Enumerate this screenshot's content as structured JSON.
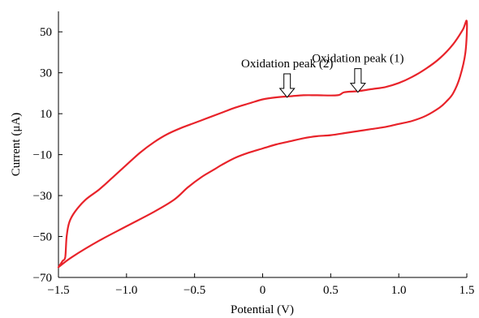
{
  "chart_data": {
    "type": "line",
    "title": "",
    "xlabel": "Potential (V)",
    "ylabel": "Current (μA)",
    "xlim": [
      -1.5,
      1.5
    ],
    "ylim": [
      -70,
      60
    ],
    "xticks": [
      -1.5,
      -1.0,
      -0.5,
      0,
      0.5,
      1.0,
      1.5
    ],
    "xtick_labels": [
      "−1.5",
      "−1.0",
      "−0.5",
      "0",
      "0.5",
      "1.0",
      "1.5"
    ],
    "yticks": [
      -70,
      -50,
      -30,
      -10,
      10,
      30,
      50
    ],
    "ytick_labels": [
      "−70",
      "−50",
      "−30",
      "−10",
      "10",
      "30",
      "50"
    ],
    "grid": false,
    "legend": "none",
    "series": [
      {
        "color": "#e8232a",
        "points": [
          [
            -1.5,
            -65
          ],
          [
            -1.47,
            -62
          ],
          [
            -1.45,
            -60
          ],
          [
            -1.44,
            -50
          ],
          [
            -1.42,
            -43
          ],
          [
            -1.38,
            -38
          ],
          [
            -1.3,
            -32
          ],
          [
            -1.2,
            -27
          ],
          [
            -1.1,
            -21
          ],
          [
            -1.0,
            -15
          ],
          [
            -0.9,
            -9
          ],
          [
            -0.8,
            -4
          ],
          [
            -0.7,
            0
          ],
          [
            -0.6,
            3
          ],
          [
            -0.5,
            5.5
          ],
          [
            -0.4,
            8
          ],
          [
            -0.3,
            10.5
          ],
          [
            -0.2,
            13
          ],
          [
            -0.1,
            15
          ],
          [
            0,
            17
          ],
          [
            0.1,
            18
          ],
          [
            0.2,
            18.5
          ],
          [
            0.3,
            19
          ],
          [
            0.4,
            19
          ],
          [
            0.55,
            19
          ],
          [
            0.6,
            20.5
          ],
          [
            0.7,
            21
          ],
          [
            0.8,
            22
          ],
          [
            0.9,
            23
          ],
          [
            1.0,
            25
          ],
          [
            1.1,
            28
          ],
          [
            1.2,
            32
          ],
          [
            1.3,
            37
          ],
          [
            1.4,
            44
          ],
          [
            1.47,
            51
          ],
          [
            1.5,
            55
          ],
          [
            1.49,
            40
          ],
          [
            1.45,
            28
          ],
          [
            1.4,
            20
          ],
          [
            1.35,
            16
          ],
          [
            1.3,
            13
          ],
          [
            1.2,
            9
          ],
          [
            1.1,
            6.5
          ],
          [
            1.0,
            5
          ],
          [
            0.9,
            3.5
          ],
          [
            0.8,
            2.5
          ],
          [
            0.7,
            1.5
          ],
          [
            0.6,
            0.5
          ],
          [
            0.5,
            -0.5
          ],
          [
            0.4,
            -1
          ],
          [
            0.3,
            -2
          ],
          [
            0.2,
            -3.5
          ],
          [
            0.1,
            -5
          ],
          [
            0,
            -7
          ],
          [
            -0.1,
            -9
          ],
          [
            -0.2,
            -11.5
          ],
          [
            -0.3,
            -15
          ],
          [
            -0.35,
            -17
          ],
          [
            -0.45,
            -21
          ],
          [
            -0.55,
            -26
          ],
          [
            -0.65,
            -32
          ],
          [
            -0.8,
            -38
          ],
          [
            -1.0,
            -45
          ],
          [
            -1.2,
            -52
          ],
          [
            -1.4,
            -60
          ],
          [
            -1.5,
            -65
          ]
        ]
      }
    ],
    "annotations": [
      {
        "text": "Oxidation peak (1)",
        "x": 0.7,
        "y": 20.5
      },
      {
        "text": "Oxidation peak (2)",
        "x": 0.18,
        "y": 18
      }
    ]
  }
}
